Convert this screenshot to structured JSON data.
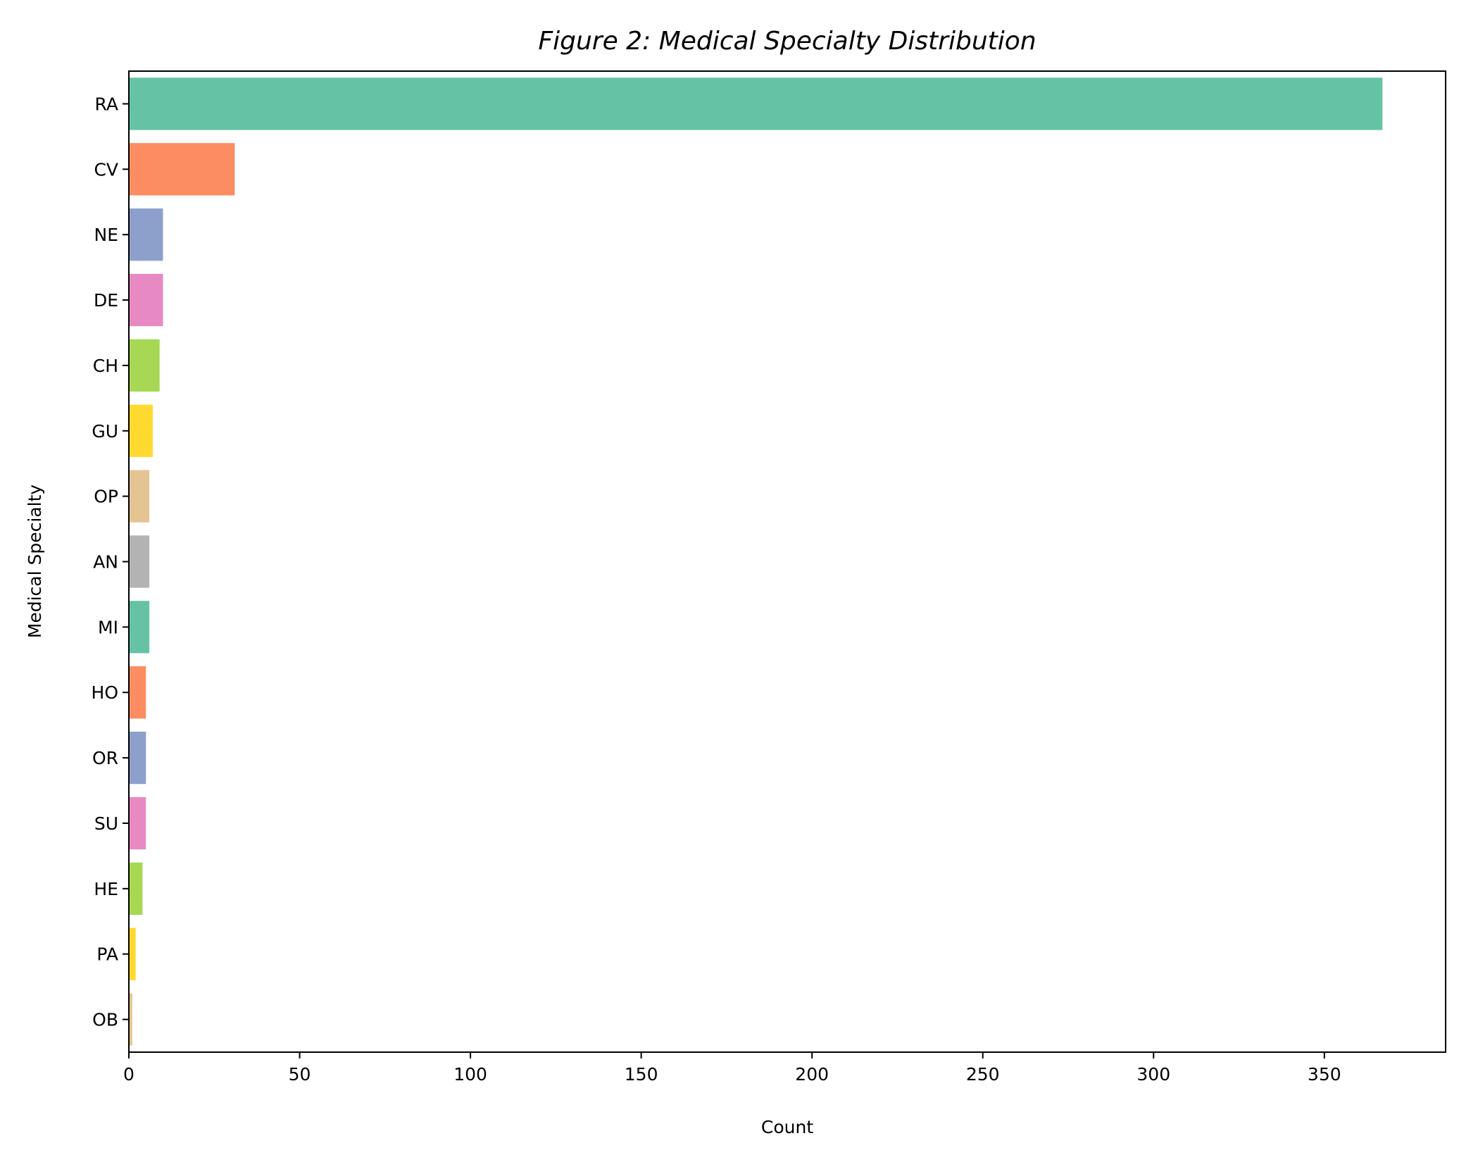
{
  "chart_data": {
    "type": "bar",
    "orientation": "horizontal",
    "title": "Figure 2: Medical Specialty Distribution",
    "xlabel": "Count",
    "ylabel": "Medical Specialty",
    "categories": [
      "RA",
      "CV",
      "NE",
      "DE",
      "CH",
      "GU",
      "OP",
      "AN",
      "MI",
      "HO",
      "OR",
      "SU",
      "HE",
      "PA",
      "OB"
    ],
    "values": [
      367,
      31,
      10,
      10,
      9,
      7,
      6,
      6,
      6,
      5,
      5,
      5,
      4,
      2,
      1
    ],
    "colors": [
      "#66c2a5",
      "#fc8d62",
      "#8da0cb",
      "#e78ac3",
      "#a6d854",
      "#ffd92f",
      "#e5c494",
      "#b3b3b3",
      "#66c2a5",
      "#fc8d62",
      "#8da0cb",
      "#e78ac3",
      "#a6d854",
      "#ffd92f",
      "#e5c494"
    ],
    "xlim": [
      0,
      385.5
    ],
    "xticks": [
      0,
      50,
      100,
      150,
      200,
      250,
      300,
      350
    ],
    "grid": false,
    "legend": "none"
  }
}
